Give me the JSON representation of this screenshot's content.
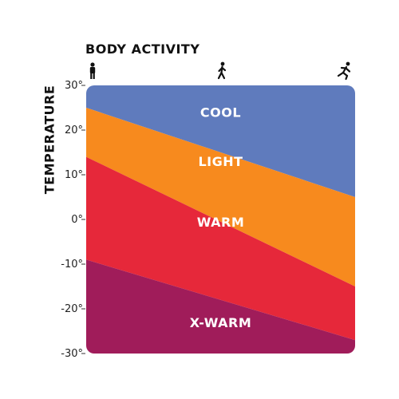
{
  "chart_data": {
    "type": "area",
    "xlabel": "BODY ACTIVITY",
    "ylabel": "TEMPERATURE",
    "ylim": [
      -30,
      30
    ],
    "y_ticks": [
      "30°",
      "20°",
      "10°",
      "0°",
      "-10°",
      "-20°",
      "-30°"
    ],
    "y_tick_values": [
      30,
      20,
      10,
      0,
      -10,
      -20,
      -30
    ],
    "x_categories": [
      "standing-icon",
      "walking-icon",
      "running-icon"
    ],
    "x": [
      0,
      0.5,
      1
    ],
    "grid": false,
    "boundaries": [
      {
        "between": [
          "COOL",
          "LIGHT"
        ],
        "y_start": 25,
        "y_end": 5
      },
      {
        "between": [
          "LIGHT",
          "WARM"
        ],
        "y_start": 14,
        "y_end": -15
      },
      {
        "between": [
          "WARM",
          "X-WARM"
        ],
        "y_start": -9,
        "y_end": -27
      }
    ],
    "zones": [
      {
        "name": "COOL",
        "color": "#5f7bbd",
        "label_y": 24
      },
      {
        "name": "LIGHT",
        "color": "#f78a1e",
        "label_y": 13
      },
      {
        "name": "WARM",
        "color": "#e6283a",
        "label_y": -0.5
      },
      {
        "name": "X-WARM",
        "color": "#a01c5a",
        "label_y": -23
      }
    ]
  }
}
